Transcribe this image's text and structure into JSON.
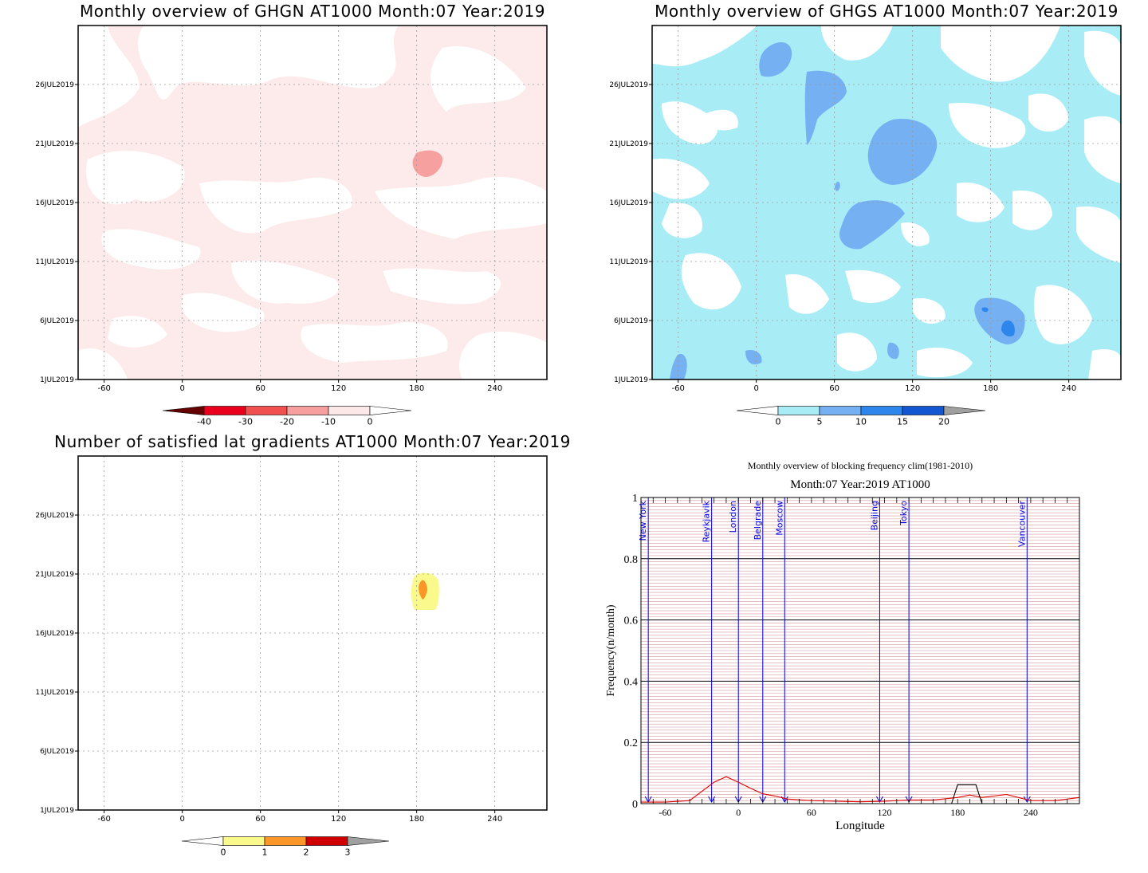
{
  "chart_data": [
    {
      "id": "ghgn",
      "type": "heatmap",
      "title": "Monthly overview of GHGN AT1000 Month:07 Year:2019",
      "x_ticks": [
        -60,
        0,
        60,
        120,
        180,
        240
      ],
      "y_ticks": [
        "1JUL2019",
        "6JUL2019",
        "11JUL2019",
        "16JUL2019",
        "21JUL2019",
        "26JUL2019"
      ],
      "xlim": [
        -80,
        280
      ],
      "colorbar": {
        "labels": [
          "-40",
          "-30",
          "-20",
          "-10",
          "0"
        ],
        "colors": [
          "#640000",
          "#e8001c",
          "#f05050",
          "#f79e9e",
          "#fde8e8"
        ]
      }
    },
    {
      "id": "ghgs",
      "type": "heatmap",
      "title": "Monthly overview of GHGS AT1000 Month:07 Year:2019",
      "x_ticks": [
        -60,
        0,
        60,
        120,
        180,
        240
      ],
      "y_ticks": [
        "1JUL2019",
        "6JUL2019",
        "11JUL2019",
        "16JUL2019",
        "21JUL2019",
        "26JUL2019"
      ],
      "xlim": [
        -80,
        280
      ],
      "colorbar": {
        "labels": [
          "0",
          "5",
          "10",
          "15",
          "20"
        ],
        "colors": [
          "#a8ecf6",
          "#74b0f2",
          "#2c86ec",
          "#1256d2",
          "#a0a0a0"
        ]
      }
    },
    {
      "id": "gradients",
      "type": "heatmap",
      "title": "Number of satisfied lat gradients AT1000 Month:07 Year:2019",
      "x_ticks": [
        -60,
        0,
        60,
        120,
        180,
        240
      ],
      "y_ticks": [
        "1JUL2019",
        "6JUL2019",
        "11JUL2019",
        "16JUL2019",
        "21JUL2019",
        "26JUL2019"
      ],
      "xlim": [
        -80,
        280
      ],
      "colorbar": {
        "labels": [
          "0",
          "1",
          "2",
          "3"
        ],
        "colors": [
          "#fafa8c",
          "#fb9628",
          "#d00000",
          "#a0a0a0"
        ]
      }
    },
    {
      "id": "blocking",
      "type": "line",
      "title": "Monthly overview of blocking frequency clim(1981-2010)",
      "subtitle": "Month:07 Year:2019  AT1000",
      "xlabel": "Longitude",
      "ylabel": "Frequency(n/month)",
      "xlim": [
        -80,
        280
      ],
      "ylim": [
        0,
        1
      ],
      "x_ticks": [
        -60,
        0,
        60,
        120,
        180,
        240
      ],
      "y_ticks": [
        "0",
        "0.2",
        "0.4",
        "0.6",
        "0.8",
        "1"
      ],
      "cities": [
        {
          "name": "New York",
          "lon": -74
        },
        {
          "name": "Reykjavik",
          "lon": -22
        },
        {
          "name": "London",
          "lon": 0
        },
        {
          "name": "Belgrade",
          "lon": 20
        },
        {
          "name": "Moscow",
          "lon": 38
        },
        {
          "name": "Beijing",
          "lon": 116
        },
        {
          "name": "Tokyo",
          "lon": 140
        },
        {
          "name": "Vancouver",
          "lon": 237
        }
      ],
      "series": [
        {
          "color": "#e00000",
          "x": [
            -80,
            -60,
            -40,
            -30,
            -20,
            -10,
            0,
            10,
            20,
            30,
            40,
            60,
            80,
            100,
            120,
            140,
            160,
            180,
            190,
            200,
            220,
            240,
            260,
            280
          ],
          "y": [
            0.005,
            0.005,
            0.01,
            0.04,
            0.07,
            0.088,
            0.07,
            0.05,
            0.032,
            0.025,
            0.015,
            0.01,
            0.008,
            0.006,
            0.008,
            0.012,
            0.012,
            0.02,
            0.028,
            0.02,
            0.03,
            0.01,
            0.01,
            0.02
          ]
        },
        {
          "color": "#000000",
          "x": [
            -80,
            170,
            175,
            180,
            195,
            200,
            280
          ],
          "y": [
            0,
            0,
            0,
            0.062,
            0.062,
            0,
            0
          ]
        }
      ]
    }
  ]
}
